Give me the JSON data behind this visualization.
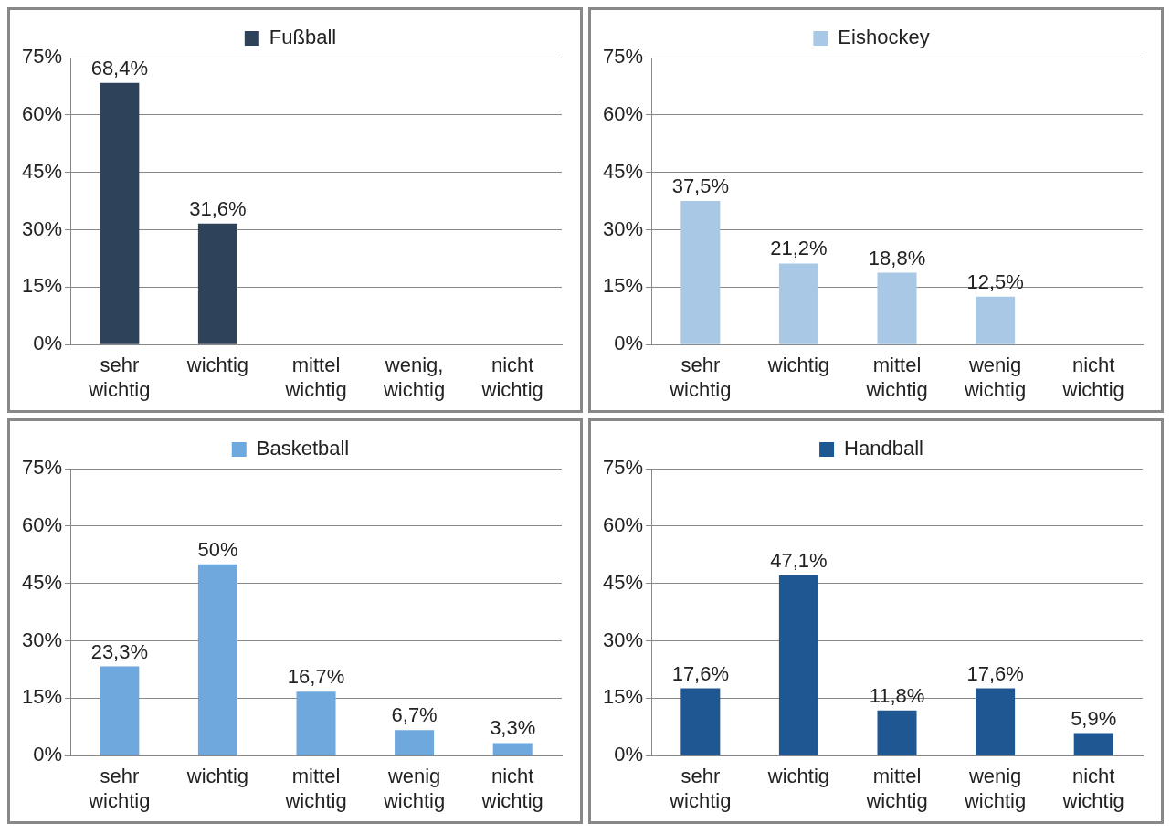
{
  "chart_data": [
    {
      "type": "bar",
      "categories": [
        "sehr wichtig",
        "wichtig",
        "mittel wichtig",
        "wenig, wichtig",
        "nicht wichtig"
      ],
      "series": [
        {
          "name": "Fußball",
          "color": "#2e4259",
          "values": [
            68.4,
            31.6,
            null,
            null,
            null
          ],
          "value_labels": [
            "68,4%",
            "31,6%",
            null,
            null,
            null
          ]
        }
      ],
      "ylim": [
        0,
        75
      ],
      "yticks": [
        {
          "value": 0,
          "label": "0%"
        },
        {
          "value": 15,
          "label": "15%"
        },
        {
          "value": 30,
          "label": "30%"
        },
        {
          "value": 45,
          "label": "45%"
        },
        {
          "value": 60,
          "label": "60%"
        },
        {
          "value": 75,
          "label": "75%"
        }
      ],
      "grid": "y",
      "legend": "top"
    },
    {
      "type": "bar",
      "categories": [
        "sehr wichtig",
        "wichtig",
        "mittel wichtig",
        "wenig wichtig",
        "nicht wichtig"
      ],
      "series": [
        {
          "name": "Eishockey",
          "color": "#a9c8e6",
          "values": [
            37.5,
            21.2,
            18.8,
            12.5,
            null
          ],
          "value_labels": [
            "37,5%",
            "21,2%",
            "18,8%",
            "12,5%",
            null
          ]
        }
      ],
      "ylim": [
        0,
        75
      ],
      "yticks": [
        {
          "value": 0,
          "label": "0%"
        },
        {
          "value": 15,
          "label": "15%"
        },
        {
          "value": 30,
          "label": "30%"
        },
        {
          "value": 45,
          "label": "45%"
        },
        {
          "value": 60,
          "label": "60%"
        },
        {
          "value": 75,
          "label": "75%"
        }
      ],
      "grid": "y",
      "legend": "top"
    },
    {
      "type": "bar",
      "categories": [
        "sehr wichtig",
        "wichtig",
        "mittel wichtig",
        "wenig wichtig",
        "nicht wichtig"
      ],
      "series": [
        {
          "name": "Basketball",
          "color": "#6fa8dc",
          "values": [
            23.3,
            50,
            16.7,
            6.7,
            3.3
          ],
          "value_labels": [
            "23,3%",
            "50%",
            "16,7%",
            "6,7%",
            "3,3%"
          ]
        }
      ],
      "ylim": [
        0,
        75
      ],
      "yticks": [
        {
          "value": 0,
          "label": "0%"
        },
        {
          "value": 15,
          "label": "15%"
        },
        {
          "value": 30,
          "label": "30%"
        },
        {
          "value": 45,
          "label": "45%"
        },
        {
          "value": 60,
          "label": "60%"
        },
        {
          "value": 75,
          "label": "75%"
        }
      ],
      "grid": "y",
      "legend": "top"
    },
    {
      "type": "bar",
      "categories": [
        "sehr wichtig",
        "wichtig",
        "mittel wichtig",
        "wenig wichtig",
        "nicht wichtig"
      ],
      "series": [
        {
          "name": "Handball",
          "color": "#1f5792",
          "values": [
            17.6,
            47.1,
            11.8,
            17.6,
            5.9
          ],
          "value_labels": [
            "17,6%",
            "47,1%",
            "11,8%",
            "17,6%",
            "5,9%"
          ]
        }
      ],
      "ylim": [
        0,
        75
      ],
      "yticks": [
        {
          "value": 0,
          "label": "0%"
        },
        {
          "value": 15,
          "label": "15%"
        },
        {
          "value": 30,
          "label": "30%"
        },
        {
          "value": 45,
          "label": "45%"
        },
        {
          "value": 60,
          "label": "60%"
        },
        {
          "value": 75,
          "label": "75%"
        }
      ],
      "grid": "y",
      "legend": "top"
    }
  ]
}
